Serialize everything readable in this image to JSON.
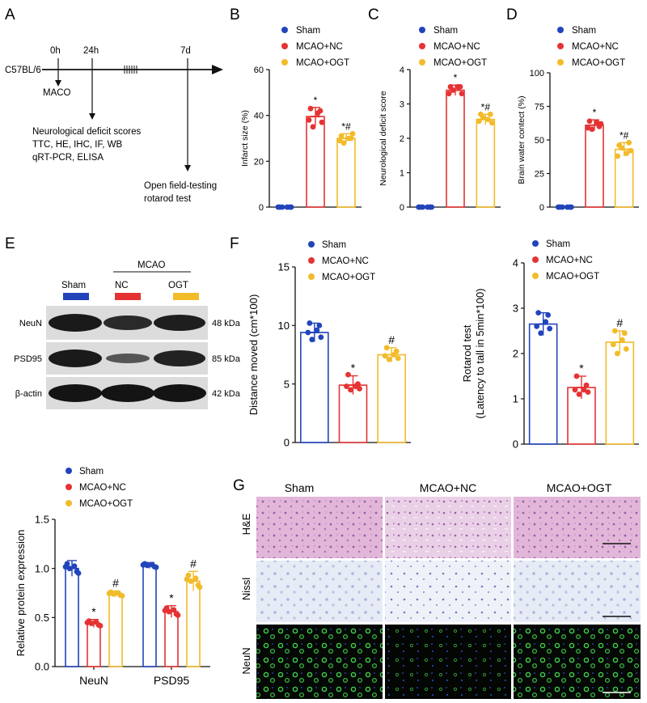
{
  "colors": {
    "sham": "#2244bb",
    "nc": "#e53333",
    "ogt": "#f2bb2a"
  },
  "legend": [
    "Sham",
    "MCAO+NC",
    "MCAO+OGT"
  ],
  "panel_letters": [
    "A",
    "B",
    "C",
    "D",
    "E",
    "F",
    "G"
  ],
  "timeline": {
    "strain": "C57BL/6",
    "t0": "0h",
    "t1": "24h",
    "t2": "7d",
    "maco": "MACO",
    "assays1": [
      "Neurological deficit scores",
      "TTC, HE, IHC, IF, WB",
      "qRT-PCR, ELISA"
    ],
    "assays2": [
      "Open field-testing",
      "rotarod test"
    ]
  },
  "blot": {
    "group_label": "MCAO",
    "lane_labels": [
      "Sham",
      "NC",
      "OGT"
    ],
    "rows": [
      {
        "name": "NeuN",
        "kda": "48 kDa"
      },
      {
        "name": "PSD95",
        "kda": "85 kDa"
      },
      {
        "name": "β-actin",
        "kda": "42 kDa"
      }
    ]
  },
  "histology": {
    "col_labels": [
      "Sham",
      "MCAO+NC",
      "MCAO+OGT"
    ],
    "row_labels": [
      "H&E",
      "Nissl",
      "NeuN"
    ]
  },
  "chart_data": [
    {
      "id": "B",
      "type": "bar",
      "ylabel": "Infarct size (%)",
      "ylim": [
        0,
        60
      ],
      "yticks": [
        0,
        20,
        40,
        60
      ],
      "series": [
        {
          "name": "Sham",
          "mean": 0,
          "sd": 0,
          "points": [
            0,
            0,
            0,
            0,
            0,
            0
          ],
          "mark": ""
        },
        {
          "name": "MCAO+NC",
          "mean": 39.5,
          "sd": 4,
          "points": [
            43,
            42,
            38,
            37,
            35,
            41
          ],
          "mark": "*"
        },
        {
          "name": "MCAO+OGT",
          "mean": 30,
          "sd": 2,
          "points": [
            31,
            30,
            29,
            32,
            28,
            30
          ],
          "mark": "*#"
        }
      ]
    },
    {
      "id": "C",
      "type": "bar",
      "ylabel": "Neurological deficit score",
      "ylim": [
        0,
        4
      ],
      "yticks": [
        0,
        1,
        2,
        3,
        4
      ],
      "series": [
        {
          "name": "Sham",
          "mean": 0,
          "sd": 0,
          "points": [
            0,
            0,
            0,
            0,
            0,
            0
          ],
          "mark": ""
        },
        {
          "name": "MCAO+NC",
          "mean": 3.4,
          "sd": 0.15,
          "points": [
            3.5,
            3.5,
            3.3,
            3.3,
            3.4,
            3.5
          ],
          "mark": "*"
        },
        {
          "name": "MCAO+OGT",
          "mean": 2.55,
          "sd": 0.15,
          "points": [
            2.7,
            2.7,
            2.5,
            2.45,
            2.6,
            2.55
          ],
          "mark": "*#"
        }
      ]
    },
    {
      "id": "D",
      "type": "bar",
      "ylabel": "Brain water contect (%)",
      "ylim": [
        0,
        100
      ],
      "yticks": [
        0,
        25,
        50,
        75,
        100
      ],
      "series": [
        {
          "name": "Sham",
          "mean": 0,
          "sd": 0,
          "points": [
            0,
            0,
            0,
            0,
            0,
            0
          ],
          "mark": ""
        },
        {
          "name": "MCAO+NC",
          "mean": 61,
          "sd": 4,
          "points": [
            64,
            60,
            59,
            62,
            58,
            63
          ],
          "mark": "*"
        },
        {
          "name": "MCAO+OGT",
          "mean": 43,
          "sd": 5,
          "points": [
            46,
            48,
            38,
            42,
            44,
            40
          ],
          "mark": "*#"
        }
      ]
    },
    {
      "id": "E",
      "type": "bar",
      "ylabel": "Relative protein expression",
      "ylim": [
        0,
        1.5
      ],
      "yticks": [
        0.0,
        0.5,
        1.0,
        1.5
      ],
      "categories": [
        "NeuN",
        "PSD95"
      ],
      "series": [
        {
          "name": "Sham",
          "values": [
            1.0,
            1.03
          ],
          "sd": [
            0.08,
            0.03
          ],
          "marks": [
            "",
            ""
          ]
        },
        {
          "name": "MCAO+NC",
          "values": [
            0.44,
            0.56
          ],
          "sd": [
            0.04,
            0.06
          ],
          "marks": [
            "*",
            "*"
          ]
        },
        {
          "name": "MCAO+OGT",
          "values": [
            0.74,
            0.87
          ],
          "sd": [
            0.03,
            0.1
          ],
          "marks": [
            "#",
            "#"
          ]
        }
      ]
    },
    {
      "id": "F1",
      "type": "bar",
      "ylabel": "Distance moved (cm*100)",
      "ylim": [
        0,
        15
      ],
      "yticks": [
        0,
        5,
        10,
        15
      ],
      "series": [
        {
          "name": "Sham",
          "mean": 9.4,
          "sd": 0.8,
          "points": [
            10.2,
            10.0,
            9.4,
            9.0,
            8.8,
            9.6
          ],
          "mark": ""
        },
        {
          "name": "MCAO+NC",
          "mean": 4.9,
          "sd": 0.8,
          "points": [
            5.8,
            5.0,
            4.8,
            4.6,
            4.5,
            4.8
          ],
          "mark": "*"
        },
        {
          "name": "MCAO+OGT",
          "mean": 7.5,
          "sd": 0.6,
          "points": [
            8.1,
            7.8,
            7.4,
            7.2,
            7.1,
            7.5
          ],
          "mark": "#"
        }
      ]
    },
    {
      "id": "F2",
      "type": "bar",
      "ylabel_lines": [
        "Rotarod test",
        "(Latency to tall in 5min*100)"
      ],
      "ylim": [
        0,
        4
      ],
      "yticks": [
        0,
        1,
        2,
        3,
        4
      ],
      "series": [
        {
          "name": "Sham",
          "mean": 2.65,
          "sd": 0.25,
          "points": [
            2.9,
            2.85,
            2.6,
            2.55,
            2.45,
            2.7
          ],
          "mark": ""
        },
        {
          "name": "MCAO+NC",
          "mean": 1.25,
          "sd": 0.25,
          "points": [
            1.5,
            1.3,
            1.2,
            1.15,
            1.1,
            1.2
          ],
          "mark": "*"
        },
        {
          "name": "MCAO+OGT",
          "mean": 2.25,
          "sd": 0.25,
          "points": [
            2.5,
            2.45,
            2.2,
            2.1,
            2.0,
            2.3
          ],
          "mark": "#"
        }
      ]
    }
  ]
}
